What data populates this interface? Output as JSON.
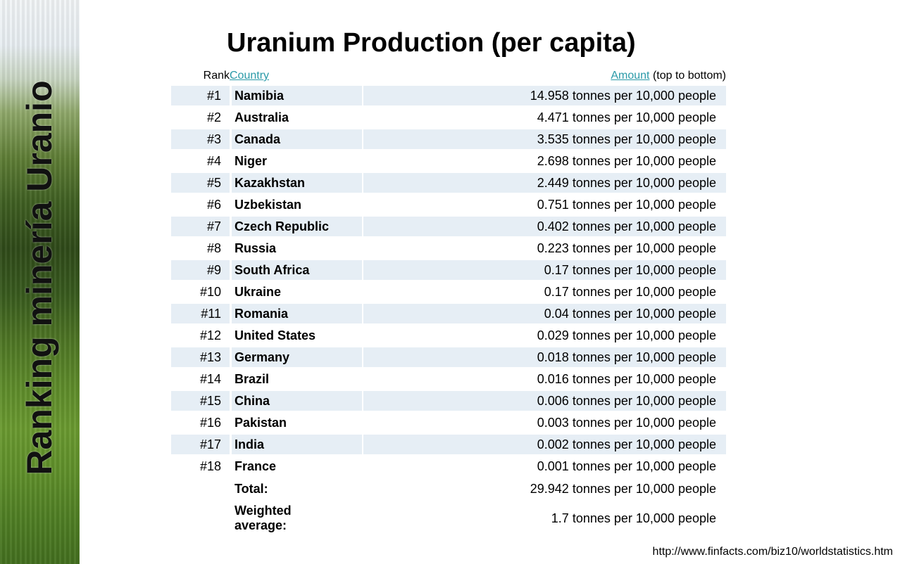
{
  "side_title": "Ranking  minería Uranio",
  "title": "Uranium Production (per capita)",
  "headers": {
    "rank": "Rank",
    "country": "Country",
    "amount": "Amount",
    "amount_note": "(top to bottom)"
  },
  "unit": "tonnes per 10,000 people",
  "rows": [
    {
      "rank": "#1",
      "country": "Namibia",
      "value": "14.958"
    },
    {
      "rank": "#2",
      "country": "Australia",
      "value": "4.471"
    },
    {
      "rank": "#3",
      "country": "Canada",
      "value": "3.535"
    },
    {
      "rank": "#4",
      "country": "Niger",
      "value": "2.698"
    },
    {
      "rank": "#5",
      "country": "Kazakhstan",
      "value": "2.449"
    },
    {
      "rank": "#6",
      "country": "Uzbekistan",
      "value": "0.751"
    },
    {
      "rank": "#7",
      "country": "Czech Republic",
      "value": "0.402"
    },
    {
      "rank": "#8",
      "country": "Russia",
      "value": "0.223"
    },
    {
      "rank": "#9",
      "country": "South Africa",
      "value": "0.17"
    },
    {
      "rank": "#10",
      "country": "Ukraine",
      "value": "0.17"
    },
    {
      "rank": "#11",
      "country": "Romania",
      "value": "0.04"
    },
    {
      "rank": "#12",
      "country": "United States",
      "value": "0.029"
    },
    {
      "rank": "#13",
      "country": "Germany",
      "value": "0.018"
    },
    {
      "rank": "#14",
      "country": "Brazil",
      "value": "0.016"
    },
    {
      "rank": "#15",
      "country": "China",
      "value": "0.006"
    },
    {
      "rank": "#16",
      "country": "Pakistan",
      "value": "0.003"
    },
    {
      "rank": "#17",
      "country": "India",
      "value": "0.002"
    },
    {
      "rank": "#18",
      "country": "France",
      "value": "0.001"
    }
  ],
  "total": {
    "label": "Total:",
    "value": "29.942"
  },
  "weighted_average": {
    "label_line1": "Weighted",
    "label_line2": "average:",
    "value": "1.7"
  },
  "source": "http://www.finfacts.com/biz10/worldstatistics.htm"
}
